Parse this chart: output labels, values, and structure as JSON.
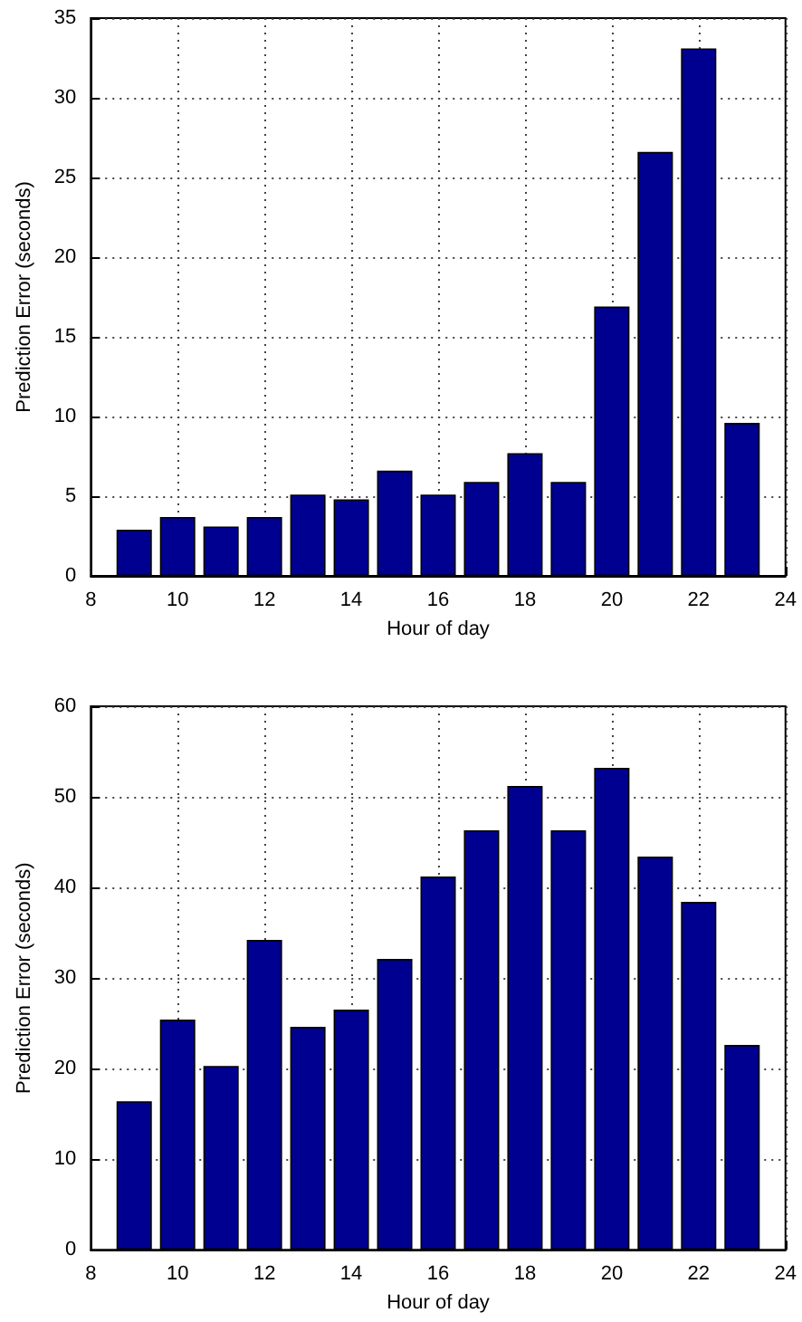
{
  "chart_data": [
    {
      "type": "bar",
      "xlabel": "Hour of day",
      "ylabel": "Prediction Error (seconds)",
      "x": [
        9,
        10,
        11,
        12,
        13,
        14,
        15,
        16,
        17,
        18,
        19,
        20,
        21,
        22,
        23
      ],
      "color": "#000090",
      "values": [
        2.9,
        3.7,
        3.1,
        3.7,
        5.1,
        4.8,
        6.6,
        5.1,
        5.9,
        7.7,
        5.9,
        16.9,
        26.6,
        33.1,
        9.6
      ],
      "xlim": [
        8,
        24
      ],
      "xticks": [
        8,
        10,
        12,
        14,
        16,
        18,
        20,
        22,
        24
      ],
      "ylim": [
        0,
        35
      ],
      "yticks": [
        0,
        5,
        10,
        15,
        20,
        25,
        30,
        35
      ],
      "grid": true
    },
    {
      "type": "bar",
      "xlabel": "Hour of day",
      "ylabel": "Prediction Error (seconds)",
      "x": [
        9,
        10,
        11,
        12,
        13,
        14,
        15,
        16,
        17,
        18,
        19,
        20,
        21,
        22,
        23
      ],
      "color": "#000090",
      "values": [
        16.4,
        25.4,
        20.3,
        34.2,
        24.6,
        26.5,
        32.1,
        41.2,
        46.3,
        51.2,
        46.3,
        53.2,
        43.4,
        38.4,
        22.6
      ],
      "xlim": [
        8,
        24
      ],
      "xticks": [
        8,
        10,
        12,
        14,
        16,
        18,
        20,
        22,
        24
      ],
      "ylim": [
        0,
        60
      ],
      "yticks": [
        0,
        10,
        20,
        30,
        40,
        50,
        60
      ],
      "grid": true
    }
  ]
}
